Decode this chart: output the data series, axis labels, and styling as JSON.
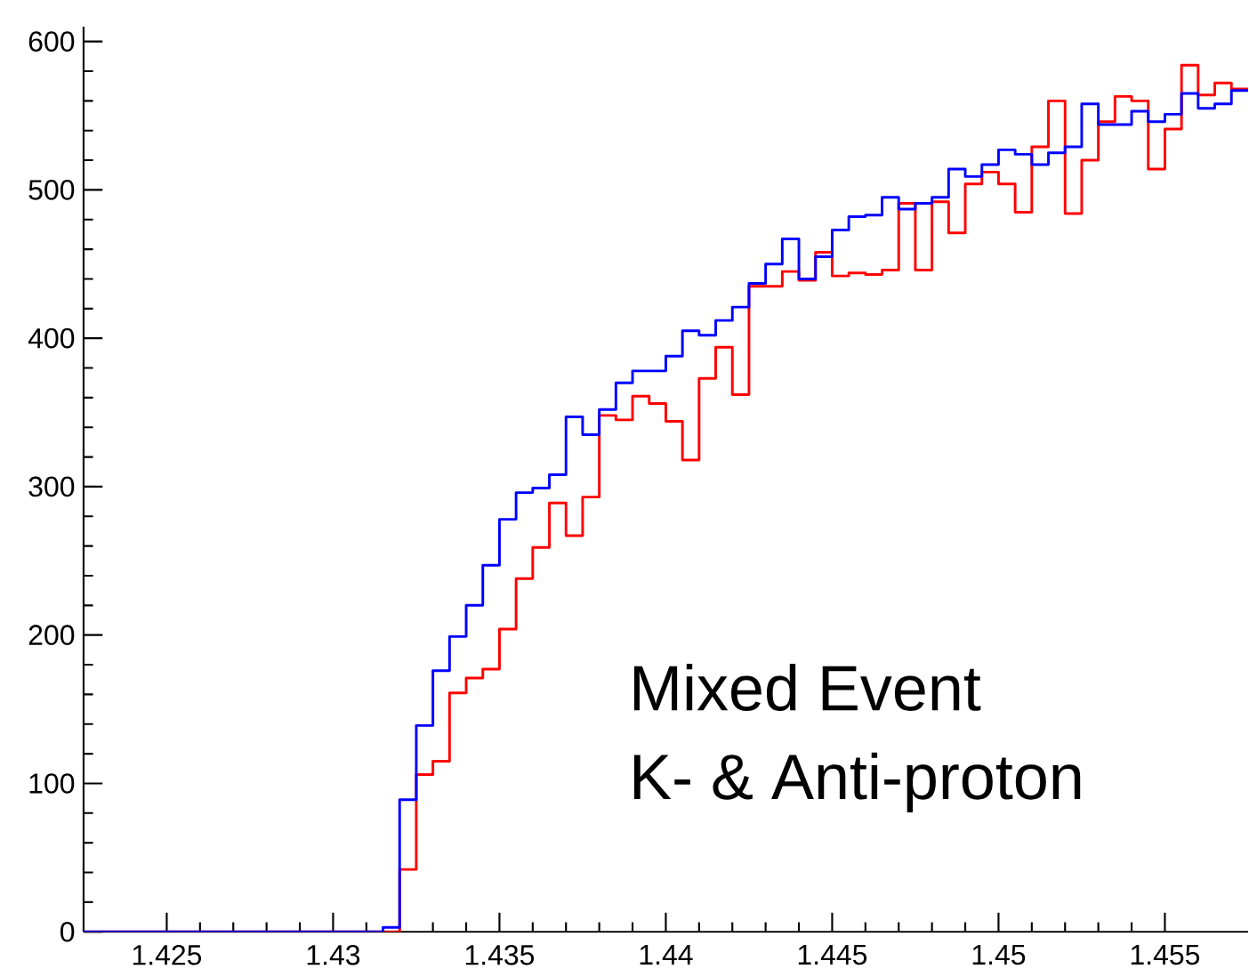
{
  "chart_data": {
    "type": "histogram",
    "bins": [
      1.4225,
      1.423,
      1.4235,
      1.424,
      1.4245,
      1.425,
      1.4255,
      1.426,
      1.4265,
      1.427,
      1.4275,
      1.428,
      1.4285,
      1.429,
      1.4295,
      1.43,
      1.4305,
      1.431,
      1.4315,
      1.432,
      1.4325,
      1.433,
      1.4335,
      1.434,
      1.4345,
      1.435,
      1.4355,
      1.436,
      1.4365,
      1.437,
      1.4375,
      1.438,
      1.4385,
      1.439,
      1.4395,
      1.44,
      1.4405,
      1.441,
      1.4415,
      1.442,
      1.4425,
      1.443,
      1.4435,
      1.444,
      1.4445,
      1.445,
      1.4455,
      1.446,
      1.4465,
      1.447,
      1.4475,
      1.448,
      1.4485,
      1.449,
      1.4495,
      1.45,
      1.4505,
      1.451,
      1.4515,
      1.452,
      1.4525,
      1.453,
      1.4535,
      1.454,
      1.4545,
      1.455,
      1.4555,
      1.456,
      1.4565,
      1.457,
      1.4575
    ],
    "series": [
      {
        "color": "#ff0000",
        "values": [
          0,
          0,
          0,
          0,
          0,
          0,
          0,
          0,
          0,
          0,
          0,
          0,
          0,
          0,
          0,
          0,
          0,
          0,
          0,
          42,
          106,
          115,
          161,
          171,
          177,
          204,
          238,
          259,
          289,
          267,
          293,
          348,
          345,
          361,
          356,
          344,
          318,
          373,
          394,
          362,
          435,
          435,
          445,
          439,
          458,
          442,
          444,
          443,
          446,
          491,
          446,
          492,
          471,
          504,
          512,
          504,
          485,
          529,
          560,
          484,
          520,
          546,
          563,
          560,
          514,
          541,
          584,
          564,
          572,
          568
        ]
      },
      {
        "color": "#0000ff",
        "values": [
          0,
          0,
          0,
          0,
          0,
          0,
          0,
          0,
          0,
          0,
          0,
          0,
          0,
          0,
          0,
          0,
          0,
          0,
          3,
          89,
          139,
          176,
          199,
          220,
          247,
          278,
          296,
          299,
          308,
          347,
          335,
          352,
          370,
          378,
          378,
          388,
          405,
          402,
          412,
          421,
          437,
          450,
          467,
          440,
          455,
          473,
          482,
          483,
          495,
          487,
          491,
          495,
          514,
          509,
          517,
          527,
          524,
          517,
          525,
          529,
          558,
          544,
          544,
          553,
          546,
          551,
          565,
          555,
          558,
          567
        ]
      }
    ],
    "xlim": [
      1.4225,
      1.4575
    ],
    "ylim": [
      0,
      610
    ],
    "xticks": [
      1.425,
      1.43,
      1.435,
      1.44,
      1.445,
      1.45,
      1.455
    ],
    "yticks": [
      0,
      100,
      200,
      300,
      400,
      500,
      600
    ],
    "annotations": [
      "Mixed Event",
      "K- & Anti-proton"
    ]
  }
}
